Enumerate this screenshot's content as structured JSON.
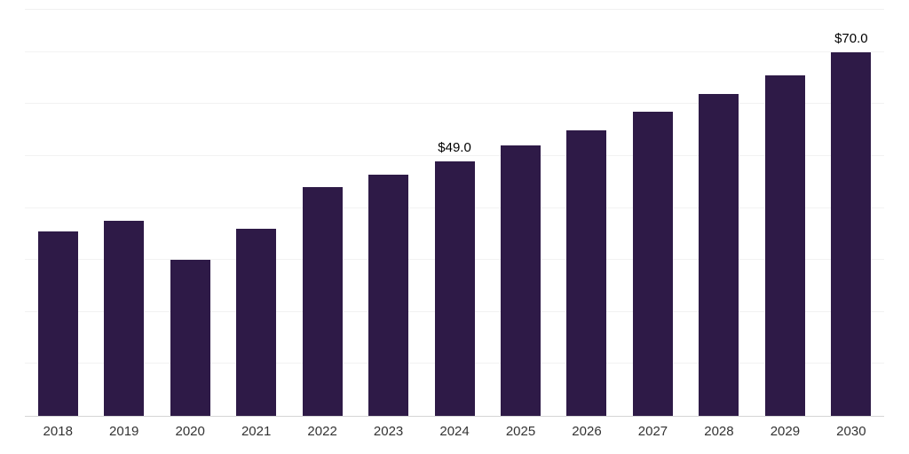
{
  "chart_data": {
    "type": "bar",
    "title": "",
    "xlabel": "",
    "ylabel": "",
    "categories": [
      "2018",
      "2019",
      "2020",
      "2021",
      "2022",
      "2023",
      "2024",
      "2025",
      "2026",
      "2027",
      "2028",
      "2029",
      "2030"
    ],
    "values": [
      35.5,
      37.5,
      30.0,
      36.0,
      44.0,
      46.5,
      49.0,
      52.0,
      55.0,
      58.5,
      62.0,
      65.5,
      70.0
    ],
    "data_labels": {
      "2024": "$49.0",
      "2030": "$70.0"
    },
    "ylim": [
      0,
      78.5
    ],
    "gridline_step": 10,
    "grid": "horizontal",
    "legend": "none",
    "bar_color": "#2e1a47",
    "gridline_color": "#f2f2f2",
    "axis_line_color": "#d6d6d6",
    "label_color": "#333333",
    "value_label_color": "#000000"
  }
}
